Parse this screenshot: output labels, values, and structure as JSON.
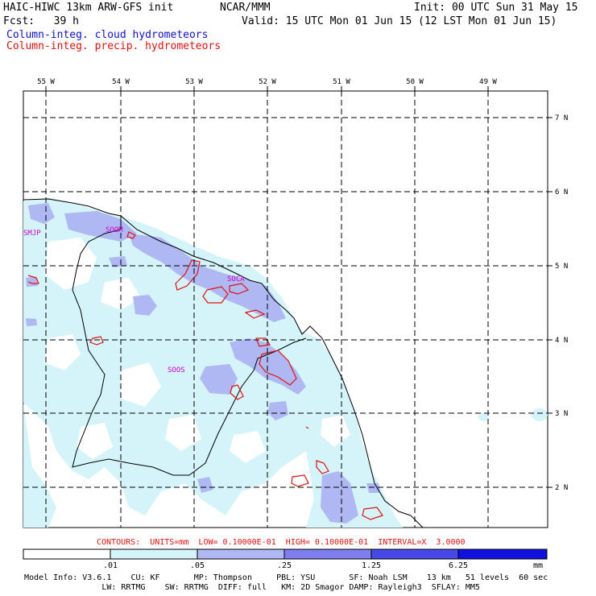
{
  "header": {
    "title": "HAIC-HIWC 13km ARW-GFS init",
    "org": "NCAR/MMM",
    "init": "Init: 00 UTC Sun 31 May 15",
    "fcst": "Fcst:   39 h",
    "valid": "Valid: 15 UTC Mon 01 Jun 15 (12 LST Mon 01 Jun 15)",
    "field1": "Column-integ. cloud hydrometeors",
    "field2": "Column-integ. precip. hydrometeors",
    "field1_color": "#1010d0",
    "field2_color": "#e01010"
  },
  "map": {
    "lon_labels": [
      "55 W",
      "54 W",
      "53 W",
      "52 W",
      "51 W",
      "50 W",
      "49 W"
    ],
    "lat_labels": [
      "7 N",
      "6 N",
      "5 N",
      "4 N",
      "3 N",
      "2 N"
    ],
    "stations": [
      "SMJP",
      "SOOM",
      "SOCA",
      "SOOS"
    ],
    "station_color": "#cc00cc"
  },
  "contour_info": "CONTOURS:  UNITS=mm  LOW= 0.10000E-01  HIGH= 0.10000E-01  INTERVAL=X  3.0000",
  "legend": {
    "ticks": [
      ".01",
      ".05",
      ".25",
      "1.25",
      "6.25"
    ],
    "unit": "mm",
    "colors": [
      "#ffffff",
      "#d4f4fa",
      "#b0b8f4",
      "#7e7ef0",
      "#4848e8",
      "#1010e0"
    ]
  },
  "footer": {
    "line1": "Model Info: V3.6.1    CU: KF       MP: Thompson     PBL: YSU       SF: Noah LSM    13 km   51 levels  60 sec",
    "line2": "                LW: RRTMG    SW: RRTMG  DIFF: full   KM: 2D Smagor DAMP: Rayleigh3  SFLAY: MM5"
  }
}
